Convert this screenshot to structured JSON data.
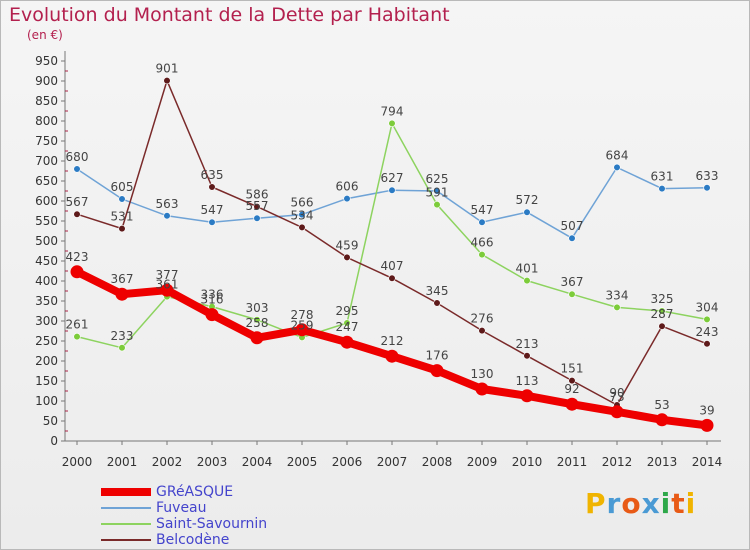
{
  "header": {
    "title": "Evolution du Montant de la Dette par Habitant",
    "subtitle": "(en €)"
  },
  "brand": {
    "text": "Proxiti",
    "colors": [
      "#f0b400",
      "#4a9ad4",
      "#e85a16",
      "#4a9ad4",
      "#2ea84a",
      "#e85a16",
      "#f0b400"
    ]
  },
  "chart_data": {
    "type": "line",
    "title": "Evolution du Montant de la Dette par Habitant",
    "subtitle": "(en €)",
    "xlabel": "",
    "ylabel": "",
    "x": [
      "2000",
      "2001",
      "2002",
      "2003",
      "2004",
      "2005",
      "2006",
      "2007",
      "2008",
      "2009",
      "2010",
      "2011",
      "2012",
      "2013",
      "2014"
    ],
    "ylim": [
      0,
      950
    ],
    "yticks": [
      0,
      50,
      100,
      150,
      200,
      250,
      300,
      350,
      400,
      450,
      500,
      550,
      600,
      650,
      700,
      750,
      800,
      850,
      900,
      950
    ],
    "grid": false,
    "legend_position": "bottom-left",
    "series": [
      {
        "name": "GRéASQUE",
        "color": "#ee0000",
        "marker": "#ee0000",
        "width": 8,
        "values": [
          423,
          367,
          377,
          316,
          258,
          278,
          247,
          212,
          176,
          130,
          113,
          92,
          73,
          53,
          39
        ]
      },
      {
        "name": "Fuveau",
        "color": "#6fa3d6",
        "marker": "#2b7bc4",
        "width": 1.5,
        "values": [
          680,
          605,
          563,
          547,
          557,
          566,
          606,
          627,
          625,
          547,
          572,
          507,
          684,
          631,
          633
        ]
      },
      {
        "name": "Saint-Savournin",
        "color": "#8dd35f",
        "marker": "#7ccc3a",
        "width": 1.5,
        "values": [
          261,
          233,
          361,
          336,
          303,
          259,
          295,
          794,
          591,
          466,
          401,
          367,
          334,
          325,
          304
        ]
      },
      {
        "name": "Belcodène",
        "color": "#7a2a2a",
        "marker": "#5e1a1a",
        "width": 1.5,
        "values": [
          567,
          531,
          901,
          635,
          586,
          534,
          459,
          407,
          345,
          276,
          213,
          151,
          90,
          287,
          243
        ]
      }
    ]
  }
}
